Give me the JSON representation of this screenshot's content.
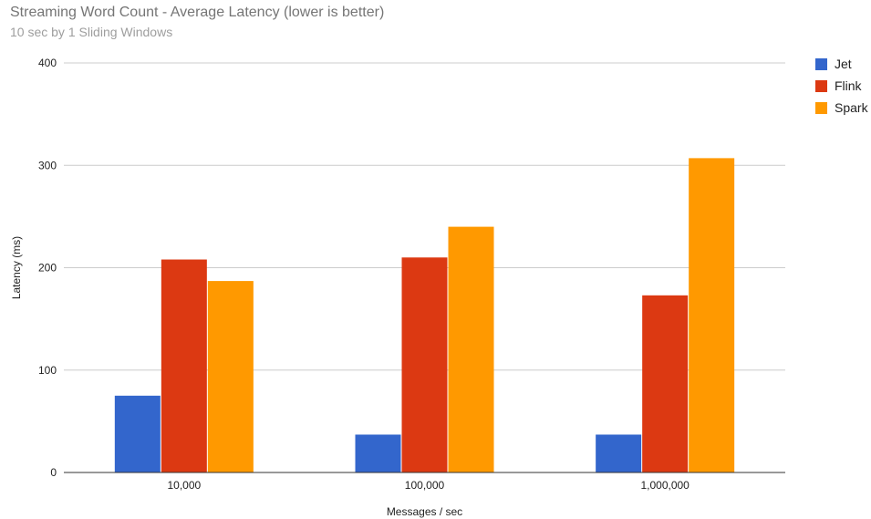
{
  "chart_data": {
    "type": "bar",
    "title": "Streaming Word Count - Average Latency (lower is better)",
    "subtitle": "10 sec by 1 Sliding Windows",
    "xlabel": "Messages / sec",
    "ylabel": "Latency (ms)",
    "categories": [
      "10,000",
      "100,000",
      "1,000,000"
    ],
    "series": [
      {
        "name": "Jet",
        "color": "#3366cc",
        "values": [
          75,
          37,
          37
        ]
      },
      {
        "name": "Flink",
        "color": "#dc3912",
        "values": [
          208,
          210,
          173
        ]
      },
      {
        "name": "Spark",
        "color": "#ff9900",
        "values": [
          187,
          240,
          307
        ]
      }
    ],
    "ylim": [
      0,
      400
    ],
    "yticks": [
      0,
      100,
      200,
      300,
      400
    ],
    "grid": true,
    "legend_position": "right"
  }
}
